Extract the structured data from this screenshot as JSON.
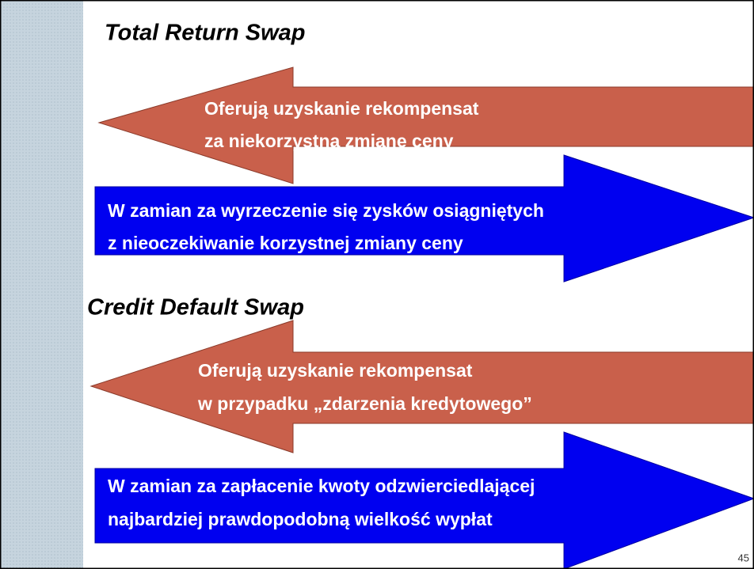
{
  "sections": [
    {
      "title": "Total Return Swap",
      "offer": [
        "Oferują uzyskanie rekompensat",
        "za niekorzystną zmianę ceny"
      ],
      "exchange": [
        "W zamian za wyrzeczenie się zysków osiągniętych",
        "z nieoczekiwanie korzystnej zmiany ceny"
      ]
    },
    {
      "title": "Credit Default Swap",
      "offer": [
        "Oferują uzyskanie rekompensat",
        "w przypadku „zdarzenia kredytowego”"
      ],
      "exchange": [
        "W zamian za zapłacenie kwoty odzwierciedlającej",
        "najbardziej prawdopodobną wielkość wypłat"
      ]
    }
  ],
  "page_number": "45"
}
